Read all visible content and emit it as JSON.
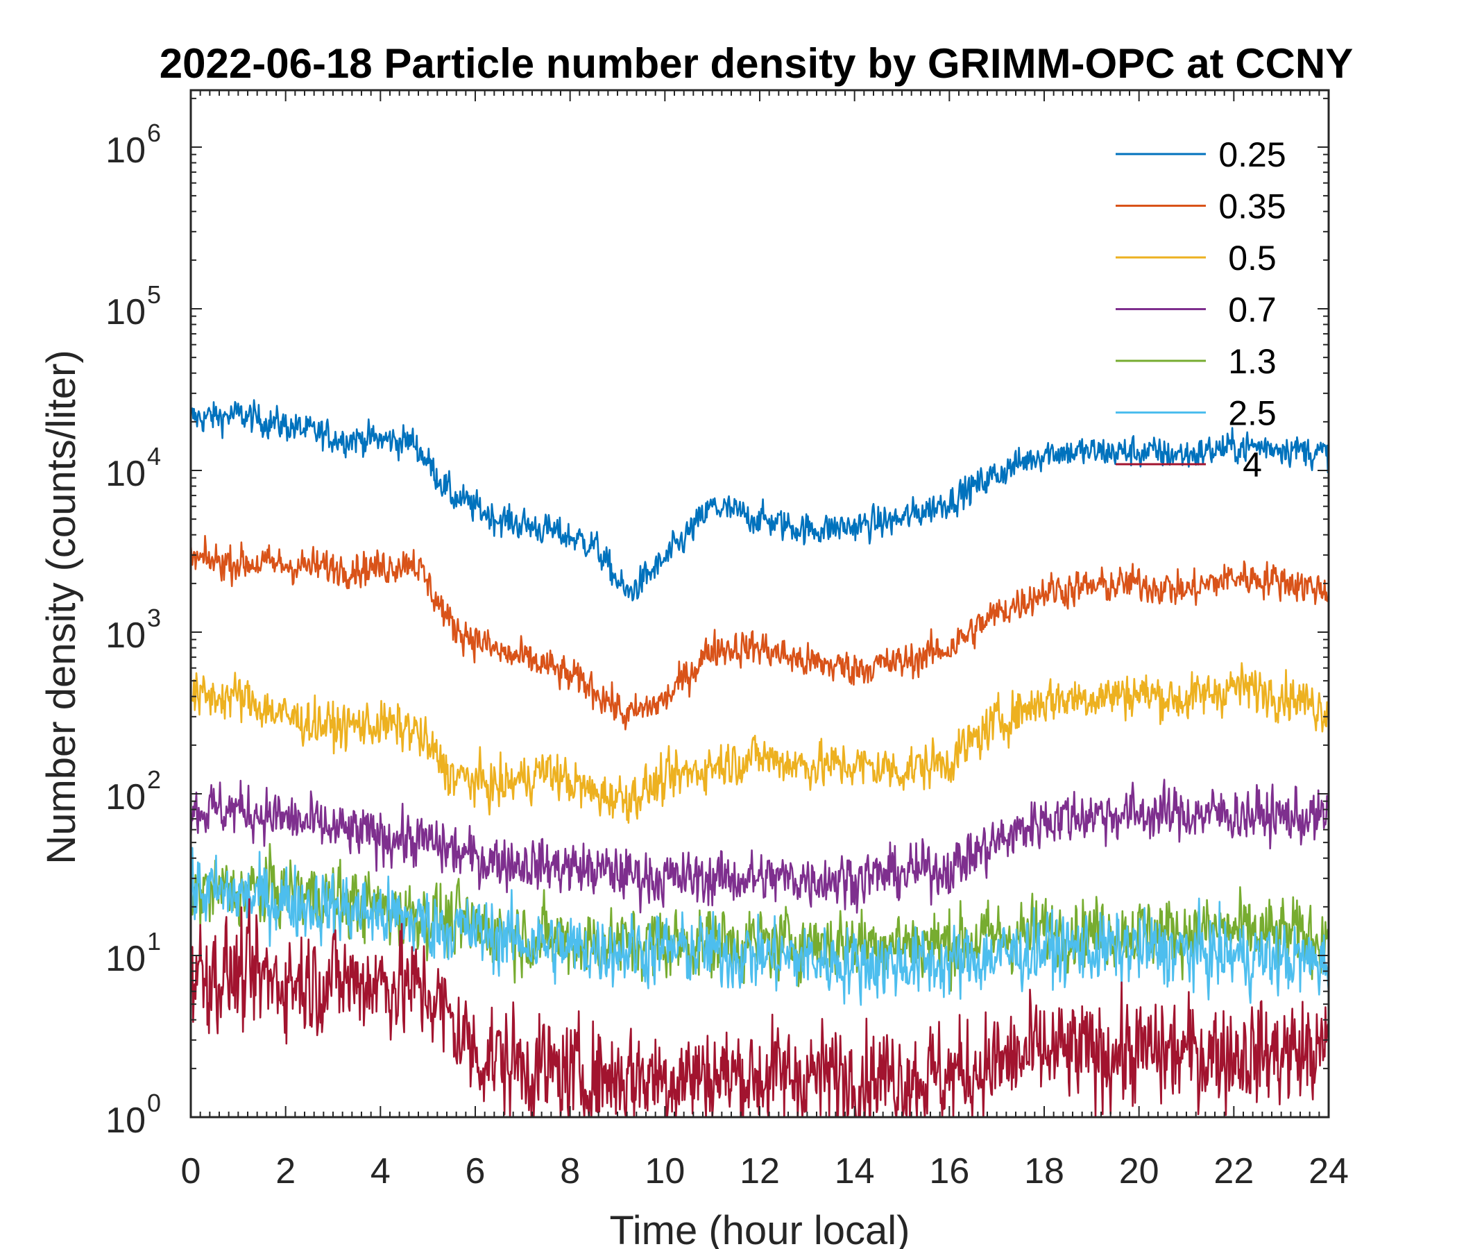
{
  "chart_data": {
    "type": "line",
    "title": "2022-06-18 Particle number density by GRIMM-OPC at CCNY",
    "xlabel": "Time (hour local)",
    "ylabel": "Number density (counts/liter)",
    "xlim": [
      0,
      24
    ],
    "ylim": [
      1,
      2000000
    ],
    "yscale": "log",
    "x_ticks": [
      "0",
      "2",
      "4",
      "6",
      "8",
      "10",
      "12",
      "14",
      "16",
      "18",
      "20",
      "22",
      "24"
    ],
    "y_ticks": [
      {
        "base": "10",
        "exp": "0"
      },
      {
        "base": "10",
        "exp": "1"
      },
      {
        "base": "10",
        "exp": "2"
      },
      {
        "base": "10",
        "exp": "3"
      },
      {
        "base": "10",
        "exp": "4"
      },
      {
        "base": "10",
        "exp": "5"
      },
      {
        "base": "10",
        "exp": "6"
      }
    ],
    "legend_position": "top-right",
    "series": [
      {
        "name": "0.25",
        "color": "#0072BD",
        "noise": 0.09,
        "x": [
          0,
          1,
          2,
          3,
          4,
          4.7,
          5.5,
          6.5,
          7.5,
          8.5,
          9.2,
          10,
          11,
          12,
          13,
          14,
          15,
          16,
          17,
          18,
          19,
          20,
          21,
          22,
          23,
          24
        ],
        "values": [
          21000,
          22000,
          19000,
          16000,
          15500,
          15000,
          7000,
          5000,
          4300,
          3500,
          1700,
          2800,
          6000,
          5000,
          4300,
          4500,
          5000,
          6500,
          9500,
          13000,
          13000,
          13000,
          12500,
          14000,
          14000,
          12500
        ]
      },
      {
        "name": "0.35",
        "color": "#D95319",
        "noise": 0.1,
        "x": [
          0,
          1,
          2,
          3,
          4,
          4.7,
          5.5,
          6.5,
          7.5,
          8.5,
          9.2,
          10,
          11,
          12,
          13,
          14,
          15,
          16,
          17,
          18,
          19,
          20,
          21,
          22,
          23,
          24
        ],
        "values": [
          2800,
          2700,
          2600,
          2500,
          2500,
          2800,
          1100,
          750,
          620,
          450,
          300,
          380,
          800,
          800,
          650,
          600,
          650,
          800,
          1300,
          1800,
          1900,
          2000,
          1800,
          2200,
          2100,
          1800
        ]
      },
      {
        "name": "0.5",
        "color": "#EDB120",
        "noise": 0.13,
        "x": [
          0,
          1,
          2,
          3,
          4,
          4.7,
          5.5,
          6.5,
          7.5,
          8.5,
          9.2,
          10,
          11,
          12,
          13,
          14,
          15,
          16,
          17,
          18,
          19,
          20,
          21,
          22,
          23,
          24
        ],
        "values": [
          400,
          400,
          300,
          260,
          270,
          250,
          130,
          110,
          140,
          100,
          95,
          120,
          150,
          170,
          150,
          150,
          140,
          160,
          280,
          380,
          400,
          420,
          380,
          460,
          420,
          330
        ]
      },
      {
        "name": "0.7",
        "color": "#7E2F8E",
        "noise": 0.15,
        "x": [
          0,
          1,
          2,
          3,
          4,
          5,
          6,
          8,
          10,
          12,
          14,
          16,
          17,
          18,
          19,
          20,
          22,
          24
        ],
        "values": [
          80,
          80,
          70,
          60,
          55,
          50,
          40,
          35,
          30,
          30,
          30,
          35,
          50,
          70,
          75,
          75,
          75,
          70
        ]
      },
      {
        "name": "1.3",
        "color": "#77AC30",
        "noise": 0.2,
        "x": [
          0,
          2,
          4,
          6,
          8,
          10,
          12,
          14,
          16,
          18,
          20,
          22,
          24
        ],
        "values": [
          25,
          25,
          20,
          15,
          12,
          12,
          12,
          12,
          12,
          14,
          14,
          14,
          13
        ]
      },
      {
        "name": "2.5",
        "color": "#4DBEEE",
        "noise": 0.2,
        "x": [
          0,
          2,
          4,
          6,
          8,
          10,
          12,
          14,
          16,
          18,
          20,
          22,
          24
        ],
        "values": [
          25,
          22,
          18,
          14,
          11,
          11,
          10,
          9,
          9,
          11,
          11,
          10,
          9
        ]
      },
      {
        "name": "4",
        "color": "#A2142F",
        "noise": 0.3,
        "x": [
          0,
          2,
          4,
          5,
          6,
          8,
          10,
          12,
          14,
          16,
          18,
          20,
          22,
          24
        ],
        "values": [
          8,
          7,
          7,
          6,
          2.5,
          1.8,
          1.8,
          1.8,
          1.8,
          1.8,
          2.5,
          2.5,
          2.5,
          2.5
        ]
      }
    ]
  }
}
